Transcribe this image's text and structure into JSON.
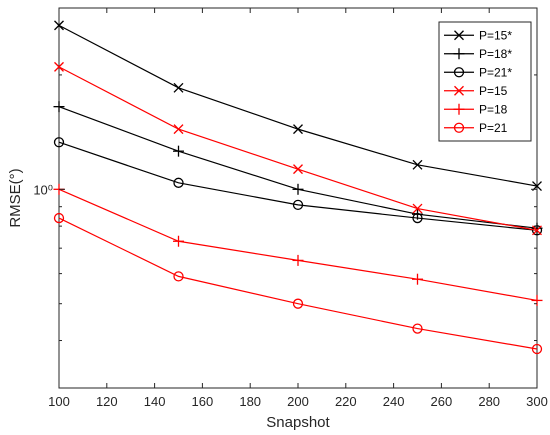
{
  "chart_data": {
    "type": "line",
    "xlabel": "Snapshot",
    "ylabel": "RMSE(°)",
    "x": [
      100,
      150,
      200,
      250,
      300
    ],
    "xlim": [
      100,
      300
    ],
    "xticks": [
      "100",
      "120",
      "140",
      "160",
      "180",
      "200",
      "220",
      "240",
      "260",
      "280",
      "300"
    ],
    "ylim": [
      0.3,
      3.0
    ],
    "yscale": "log",
    "yticks": [
      {
        "value": 1.0,
        "label": "10⁰"
      }
    ],
    "grid": false,
    "legend_position": "top-right",
    "series": [
      {
        "name": "P=15*",
        "color": "#000000",
        "marker": "x",
        "values": [
          2.7,
          1.85,
          1.44,
          1.16,
          1.02
        ]
      },
      {
        "name": "P=18*",
        "color": "#000000",
        "marker": "+",
        "values": [
          1.65,
          1.26,
          1.0,
          0.86,
          0.79
        ]
      },
      {
        "name": "P=21*",
        "color": "#000000",
        "marker": "o",
        "values": [
          1.33,
          1.04,
          0.91,
          0.84,
          0.78
        ]
      },
      {
        "name": "P=15",
        "color": "#ff0000",
        "marker": "x",
        "values": [
          2.1,
          1.44,
          1.13,
          0.89,
          0.78
        ]
      },
      {
        "name": "P=18",
        "color": "#ff0000",
        "marker": "+",
        "values": [
          1.0,
          0.73,
          0.65,
          0.58,
          0.51
        ]
      },
      {
        "name": "P=21",
        "color": "#ff0000",
        "marker": "o",
        "values": [
          0.84,
          0.59,
          0.5,
          0.43,
          0.38
        ]
      }
    ]
  }
}
